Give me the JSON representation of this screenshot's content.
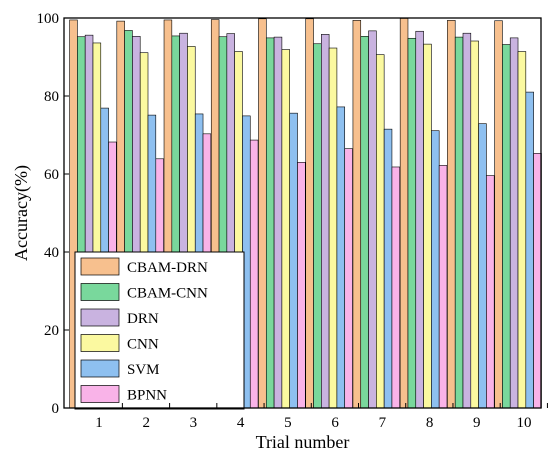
{
  "chart_data": {
    "type": "bar",
    "xlabel": "Trial number",
    "ylabel": "Accuracy(%)",
    "ylim": [
      0,
      100
    ],
    "yticks": [
      0,
      20,
      40,
      60,
      80,
      100
    ],
    "categories": [
      "1",
      "2",
      "3",
      "4",
      "5",
      "6",
      "7",
      "8",
      "9",
      "10"
    ],
    "legend_position": "bottom-left",
    "grid": false,
    "series": [
      {
        "name": "CBAM-DRN",
        "color": "#f7c08e",
        "values": [
          99.5,
          99.2,
          99.5,
          99.6,
          99.8,
          99.8,
          99.4,
          99.9,
          99.4,
          99.3
        ]
      },
      {
        "name": "CBAM-CNN",
        "color": "#79d89c",
        "values": [
          95.2,
          96.8,
          95.4,
          95.2,
          94.9,
          93.4,
          95.3,
          94.8,
          95.1,
          93.2
        ]
      },
      {
        "name": "DRN",
        "color": "#c9b3e0",
        "values": [
          95.6,
          95.3,
          96.1,
          96.0,
          95.1,
          95.8,
          96.7,
          96.6,
          96.1,
          94.9
        ]
      },
      {
        "name": "CNN",
        "color": "#fbf9a0",
        "values": [
          93.6,
          91.1,
          92.7,
          91.4,
          91.9,
          92.3,
          90.6,
          93.3,
          94.1,
          91.4
        ]
      },
      {
        "name": "SVM",
        "color": "#8ec0f0",
        "values": [
          76.9,
          75.1,
          75.4,
          74.9,
          75.6,
          77.2,
          71.5,
          71.1,
          72.9,
          81.0
        ]
      },
      {
        "name": "BPNN",
        "color": "#f9b3e8",
        "values": [
          68.2,
          63.9,
          70.3,
          68.7,
          63.0,
          66.5,
          61.8,
          62.2,
          59.6,
          65.3
        ]
      }
    ]
  }
}
